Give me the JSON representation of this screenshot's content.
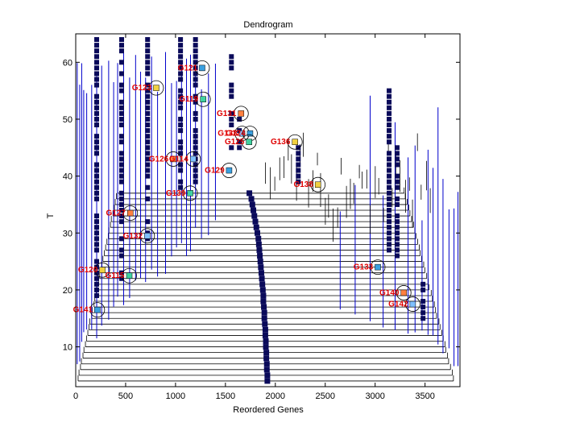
{
  "chart_data": {
    "type": "dendrogram",
    "title": "Dendrogram",
    "xlabel": "Reordered Genes",
    "ylabel": "T",
    "xlim": [
      0,
      3850
    ],
    "ylim": [
      3,
      65
    ],
    "xticks": [
      0,
      500,
      1000,
      1500,
      2000,
      2500,
      3000,
      3500
    ],
    "yticks": [
      10,
      20,
      30,
      40,
      50,
      60
    ],
    "grid": false,
    "colors": {
      "branch": "#0000cc",
      "square": "#0a0a5a",
      "label": "#e00000",
      "circle": "#000000"
    },
    "node_labels": [
      {
        "label": "G121",
        "x": 1170,
        "y": 59
      },
      {
        "label": "G123",
        "x": 710,
        "y": 55.5
      },
      {
        "label": "G119",
        "x": 1180,
        "y": 53.5
      },
      {
        "label": "G131",
        "x": 1560,
        "y": 51
      },
      {
        "label": "G133",
        "x": 1570,
        "y": 47.5
      },
      {
        "label": "G124",
        "x": 1650,
        "y": 47.5
      },
      {
        "label": "G136",
        "x": 2100,
        "y": 46
      },
      {
        "label": "G125",
        "x": 1640,
        "y": 46
      },
      {
        "label": "G126",
        "x": 880,
        "y": 43
      },
      {
        "label": "G114",
        "x": 1080,
        "y": 43
      },
      {
        "label": "G129",
        "x": 1440,
        "y": 41
      },
      {
        "label": "G138",
        "x": 2330,
        "y": 38.5
      },
      {
        "label": "G139",
        "x": 1050,
        "y": 37
      },
      {
        "label": "G127",
        "x": 450,
        "y": 33.5
      },
      {
        "label": "G132",
        "x": 620,
        "y": 29.5
      },
      {
        "label": "G133",
        "x": 2930,
        "y": 24
      },
      {
        "label": "G120",
        "x": 170,
        "y": 23.5
      },
      {
        "label": "G115",
        "x": 440,
        "y": 22.5
      },
      {
        "label": "G140",
        "x": 3190,
        "y": 19.5
      },
      {
        "label": "G142",
        "x": 3280,
        "y": 17.5
      },
      {
        "label": "G141",
        "x": 120,
        "y": 16.5
      }
    ],
    "trunk_points": [
      {
        "x": 1920,
        "y": 4
      },
      {
        "x": 1920,
        "y": 5
      },
      {
        "x": 1915,
        "y": 6
      },
      {
        "x": 1915,
        "y": 7
      },
      {
        "x": 1910,
        "y": 8
      },
      {
        "x": 1910,
        "y": 9
      },
      {
        "x": 1905,
        "y": 10
      },
      {
        "x": 1905,
        "y": 11
      },
      {
        "x": 1900,
        "y": 12
      },
      {
        "x": 1900,
        "y": 13
      },
      {
        "x": 1895,
        "y": 14
      },
      {
        "x": 1890,
        "y": 15
      },
      {
        "x": 1890,
        "y": 16
      },
      {
        "x": 1885,
        "y": 17
      },
      {
        "x": 1880,
        "y": 18
      },
      {
        "x": 1880,
        "y": 19
      },
      {
        "x": 1875,
        "y": 20
      },
      {
        "x": 1870,
        "y": 21
      },
      {
        "x": 1865,
        "y": 22
      },
      {
        "x": 1860,
        "y": 23
      },
      {
        "x": 1855,
        "y": 24
      },
      {
        "x": 1850,
        "y": 25
      },
      {
        "x": 1845,
        "y": 26
      },
      {
        "x": 1840,
        "y": 27
      },
      {
        "x": 1835,
        "y": 28
      },
      {
        "x": 1830,
        "y": 29
      },
      {
        "x": 1820,
        "y": 30
      },
      {
        "x": 1810,
        "y": 31
      },
      {
        "x": 1800,
        "y": 32
      },
      {
        "x": 1790,
        "y": 33
      },
      {
        "x": 1780,
        "y": 34
      },
      {
        "x": 1770,
        "y": 35
      },
      {
        "x": 1760,
        "y": 36
      },
      {
        "x": 1740,
        "y": 37
      }
    ]
  }
}
